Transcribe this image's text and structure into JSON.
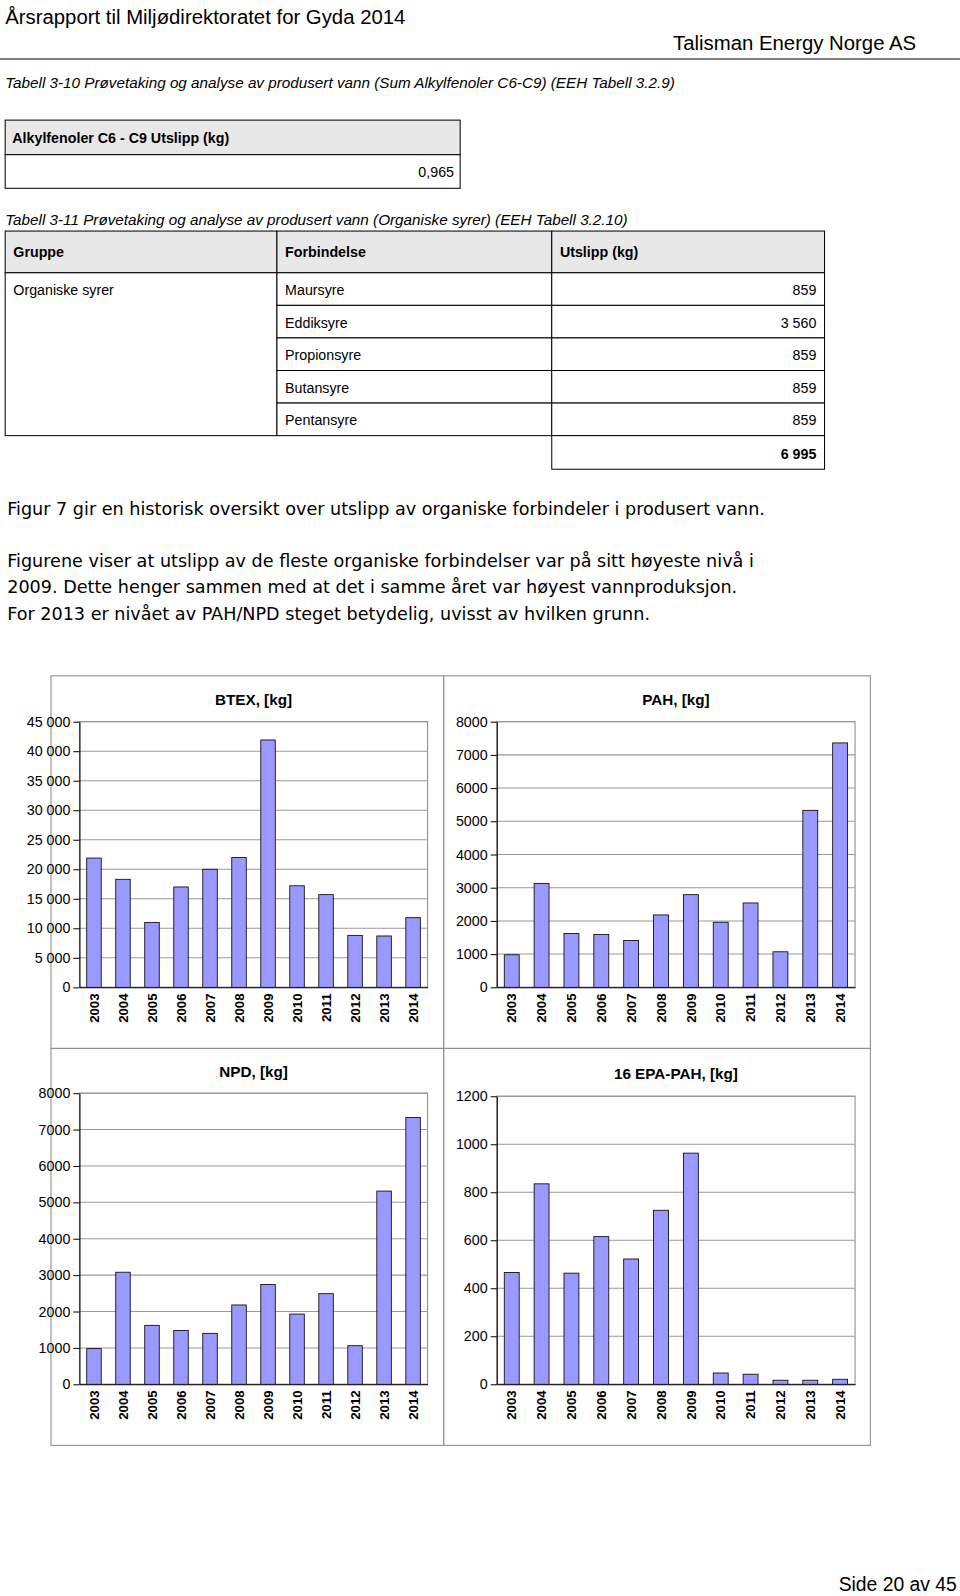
{
  "header": {
    "title": "Årsrapport til Miljødirektoratet for Gyda 2014",
    "company": "Talisman Energy Norge AS"
  },
  "tables": [
    {
      "caption": "Tabell 3-10 Prøvetaking og analyse av produsert vann (Sum Alkylfenoler C6-C9) (EEH Tabell 3.2.9)",
      "header": [
        "Alkylfenoler C6 - C9 Utslipp (kg)"
      ],
      "rows": [
        [
          "0,965"
        ]
      ]
    },
    {
      "caption": "Tabell 3-11 Prøvetaking og analyse av produsert vann (Organiske syrer) (EEH Tabell 3.2.10)",
      "header": [
        "Gruppe",
        "Forbindelse",
        "Utslipp (kg)"
      ],
      "group": "Organiske syrer",
      "rows": [
        [
          "Maursyre",
          "859"
        ],
        [
          "Eddiksyre",
          "3 560"
        ],
        [
          "Propionsyre",
          "859"
        ],
        [
          "Butansyre",
          "859"
        ],
        [
          "Pentansyre",
          "859"
        ]
      ],
      "total": "6 995"
    }
  ],
  "paragraphs": [
    [
      "Figur 7 gir en historisk oversikt over utslipp av organiske forbindeler i produsert vann."
    ],
    [
      "Figurene viser at utslipp av de fleste organiske forbindelser var på sitt høyeste nivå i",
      "2009. Dette henger sammen med at det i samme året var høyest vannproduksjon.",
      "For 2013 er nivået av PAH/NPD steget betydelig, uvisst av hvilken grunn."
    ]
  ],
  "footer": "Side 20 av 45",
  "chart_data": [
    {
      "type": "bar",
      "title": "BTEX, [kg]",
      "categories": [
        "2003",
        "2004",
        "2005",
        "2006",
        "2007",
        "2008",
        "2009",
        "2010",
        "2011",
        "2012",
        "2013",
        "2014"
      ],
      "values": [
        21900,
        18300,
        11000,
        17000,
        20000,
        22000,
        41900,
        17200,
        15700,
        8800,
        8700,
        11800
      ],
      "color": "#9999ff",
      "ylim": [
        0,
        45000
      ],
      "yticks": [
        0,
        {
          "value": 5000,
          "label": "5 000"
        },
        {
          "value": 10000,
          "label": "10 000"
        },
        {
          "value": 15000,
          "label": "15 000"
        },
        {
          "value": 20000,
          "label": "20 000"
        },
        {
          "value": 25000,
          "label": "25 000"
        },
        {
          "value": 30000,
          "label": "30 000"
        },
        {
          "value": 35000,
          "label": "35 000"
        },
        {
          "value": 40000,
          "label": "40 000"
        },
        {
          "value": 45000,
          "label": "45 000"
        }
      ],
      "grid": true
    },
    {
      "type": "bar",
      "title": "PAH, [kg]",
      "categories": [
        "2003",
        "2004",
        "2005",
        "2006",
        "2007",
        "2008",
        "2009",
        "2010",
        "2011",
        "2012",
        "2013",
        "2014"
      ],
      "values": [
        980,
        3130,
        1620,
        1590,
        1410,
        2180,
        2790,
        1960,
        2540,
        1070,
        5330,
        7360
      ],
      "color": "#9999ff",
      "ylim": [
        0,
        8000
      ],
      "yticks": [
        0,
        1000,
        2000,
        3000,
        4000,
        5000,
        6000,
        7000,
        8000
      ],
      "grid": true
    },
    {
      "type": "bar",
      "title": "NPD, [kg]",
      "categories": [
        "2003",
        "2004",
        "2005",
        "2006",
        "2007",
        "2008",
        "2009",
        "2010",
        "2011",
        "2012",
        "2013",
        "2014"
      ],
      "values": [
        980,
        3080,
        1620,
        1480,
        1400,
        2180,
        2740,
        1930,
        2490,
        1060,
        5310,
        7330
      ],
      "color": "#9999ff",
      "ylim": [
        0,
        8000
      ],
      "yticks": [
        0,
        1000,
        2000,
        3000,
        4000,
        5000,
        6000,
        7000,
        8000
      ],
      "grid": true
    },
    {
      "type": "bar",
      "title": "16 EPA-PAH, [kg]",
      "categories": [
        "2003",
        "2004",
        "2005",
        "2006",
        "2007",
        "2008",
        "2009",
        "2010",
        "2011",
        "2012",
        "2013",
        "2014"
      ],
      "values": [
        466,
        835,
        463,
        615,
        522,
        725,
        963,
        47,
        42,
        17,
        17,
        21
      ],
      "color": "#9999ff",
      "ylim": [
        0,
        1200
      ],
      "yticks": [
        0,
        200,
        400,
        600,
        800,
        1000,
        1200
      ],
      "grid": true
    }
  ]
}
